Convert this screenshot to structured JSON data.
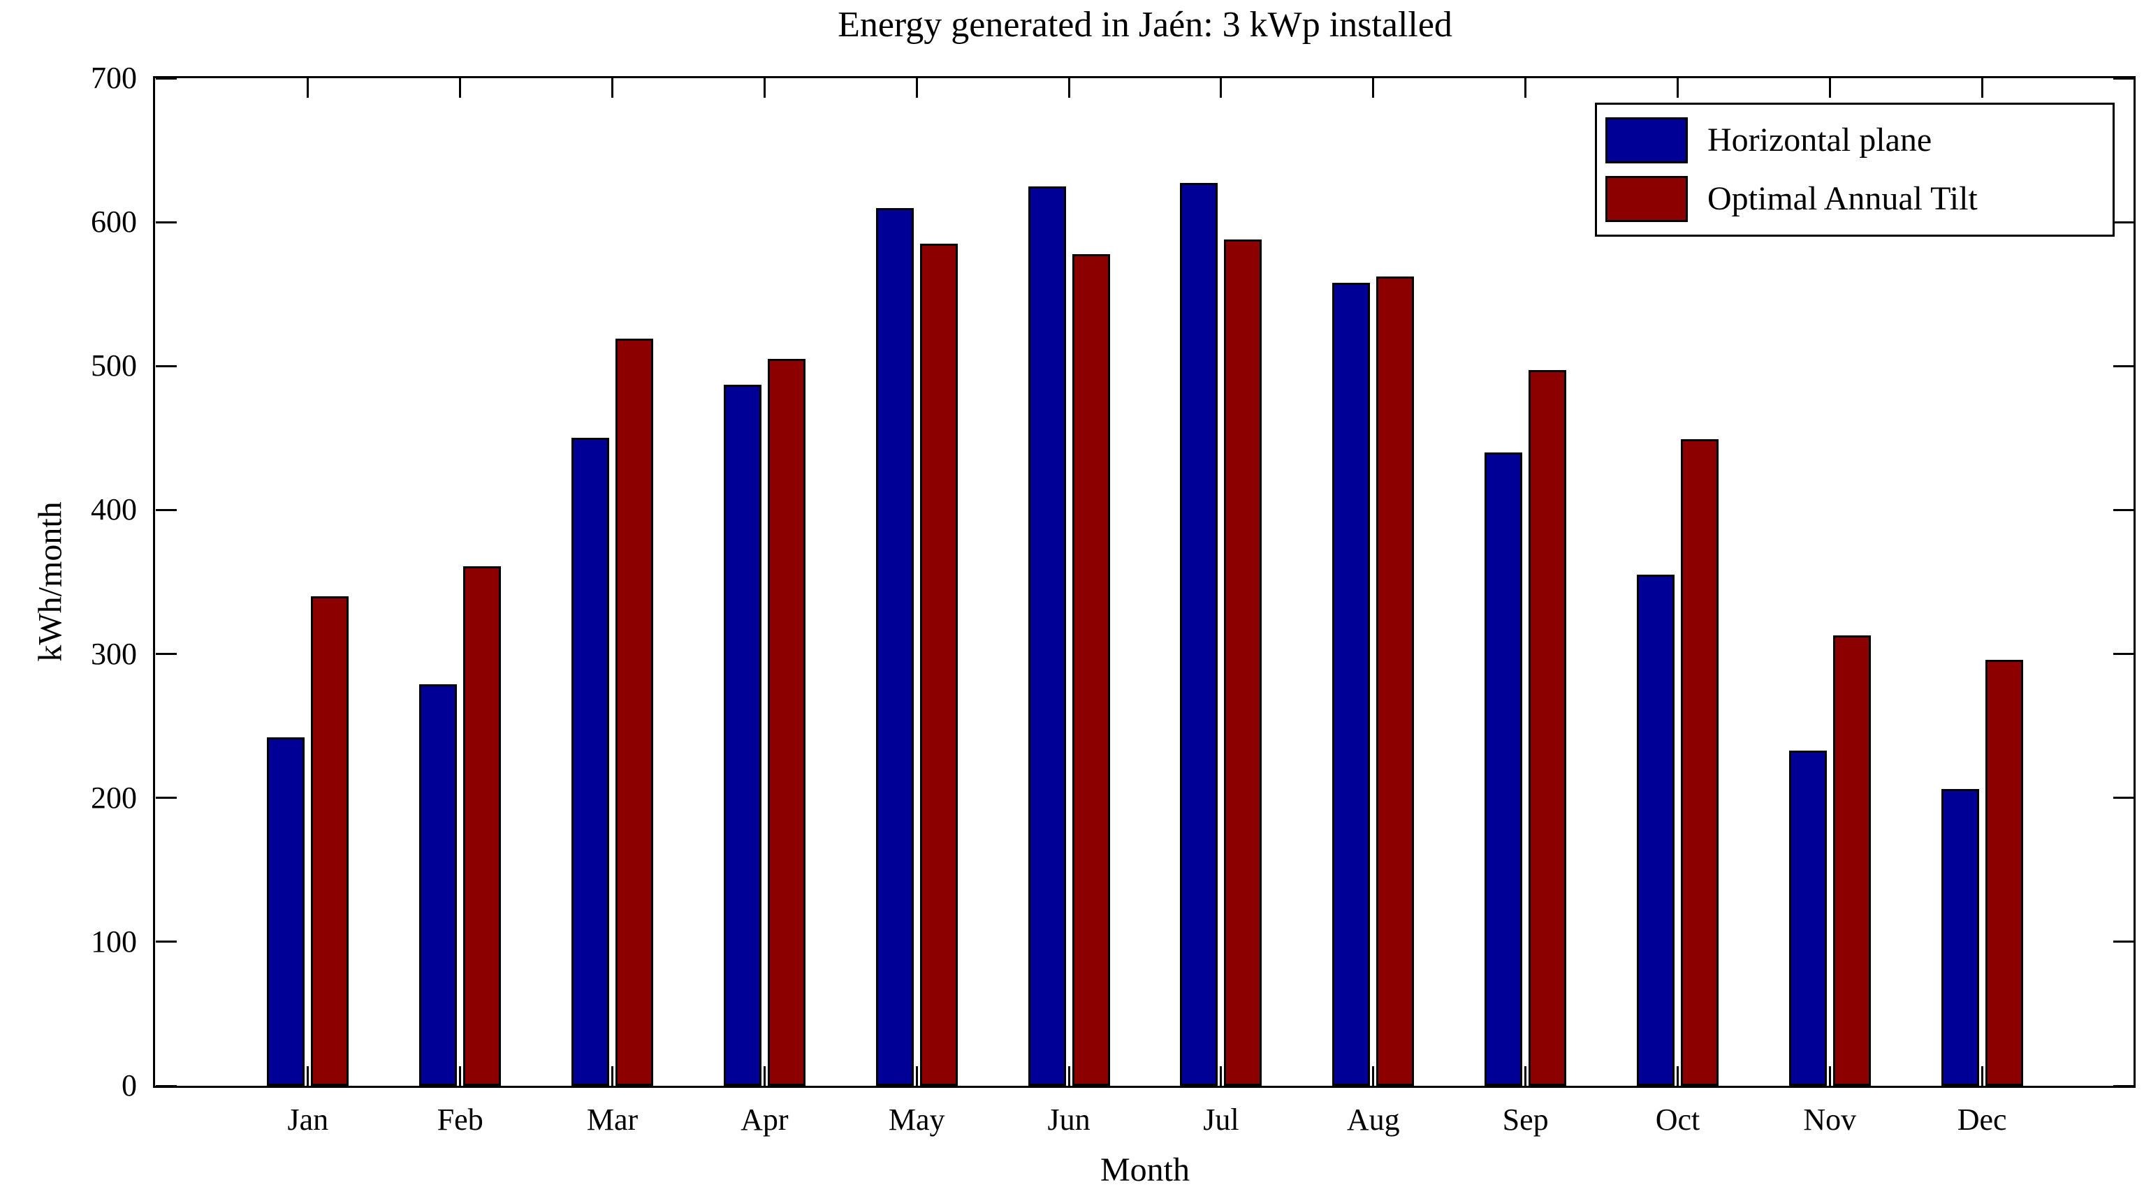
{
  "chart_data": {
    "type": "bar",
    "title": "Energy generated in Jaén: 3 kWp installed",
    "xlabel": "Month",
    "ylabel": "kWh/month",
    "ylim": [
      0,
      700
    ],
    "ytick_step": 100,
    "ytick_labels": [
      "0",
      "100",
      "200",
      "300",
      "400",
      "500",
      "600",
      "700"
    ],
    "grid": false,
    "legend_position": "top-right",
    "categories": [
      "Jan",
      "Feb",
      "Mar",
      "Apr",
      "May",
      "Jun",
      "Jul",
      "Aug",
      "Sep",
      "Oct",
      "Nov",
      "Dec"
    ],
    "series": [
      {
        "name": "Horizontal plane",
        "color": "#000096",
        "values": [
          242,
          279,
          450,
          487,
          610,
          625,
          627,
          558,
          440,
          355,
          233,
          206
        ]
      },
      {
        "name": "Optimal Annual Tilt",
        "color": "#8C0000",
        "values": [
          340,
          361,
          519,
          505,
          585,
          578,
          588,
          562,
          497,
          449,
          313,
          296
        ]
      }
    ]
  }
}
